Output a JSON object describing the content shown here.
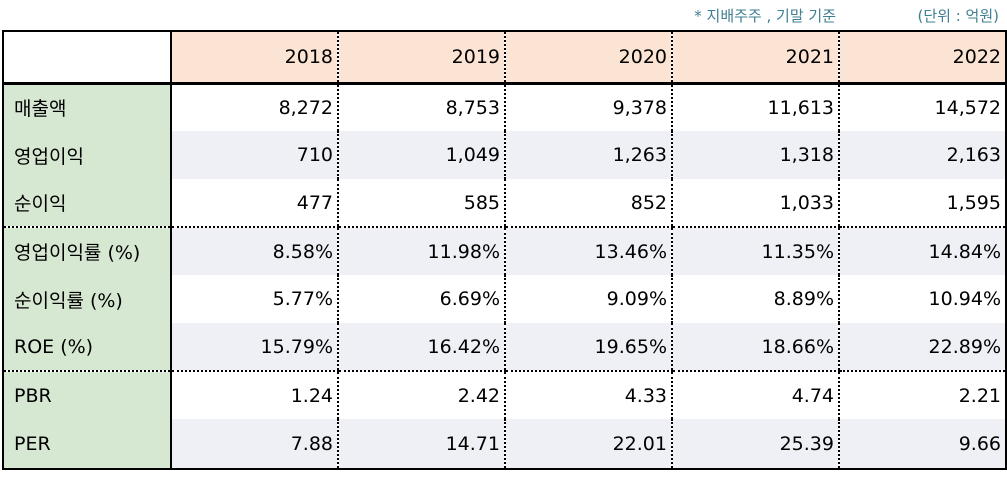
{
  "notes": {
    "basis": "* 지배주주 , 기말 기준",
    "unit": "(단위 : 억원)"
  },
  "table": {
    "years": [
      "2018",
      "2019",
      "2020",
      "2021",
      "2022"
    ],
    "rows": [
      {
        "label": "매출액",
        "values": [
          "8,272",
          "8,753",
          "9,378",
          "11,613",
          "14,572"
        ]
      },
      {
        "label": "영업이익",
        "values": [
          "710",
          "1,049",
          "1,263",
          "1,318",
          "2,163"
        ]
      },
      {
        "label": "순이익",
        "values": [
          "477",
          "585",
          "852",
          "1,033",
          "1,595"
        ]
      },
      {
        "label": "영업이익률 (%)",
        "values": [
          "8.58%",
          "11.98%",
          "13.46%",
          "11.35%",
          "14.84%"
        ]
      },
      {
        "label": "순이익률 (%)",
        "values": [
          "5.77%",
          "6.69%",
          "9.09%",
          "8.89%",
          "10.94%"
        ]
      },
      {
        "label": "ROE (%)",
        "values": [
          "15.79%",
          "16.42%",
          "19.65%",
          "18.66%",
          "22.89%"
        ]
      },
      {
        "label": "PBR",
        "values": [
          "1.24",
          "2.42",
          "4.33",
          "4.74",
          "2.21"
        ]
      },
      {
        "label": "PER",
        "values": [
          "7.88",
          "14.71",
          "22.01",
          "25.39",
          "9.66"
        ]
      }
    ]
  },
  "colors": {
    "label_column": "#d7e8d2",
    "header_row": "#fbe4d3",
    "shaded_row": "#eef0f5",
    "note_text": "#3f7f91"
  }
}
